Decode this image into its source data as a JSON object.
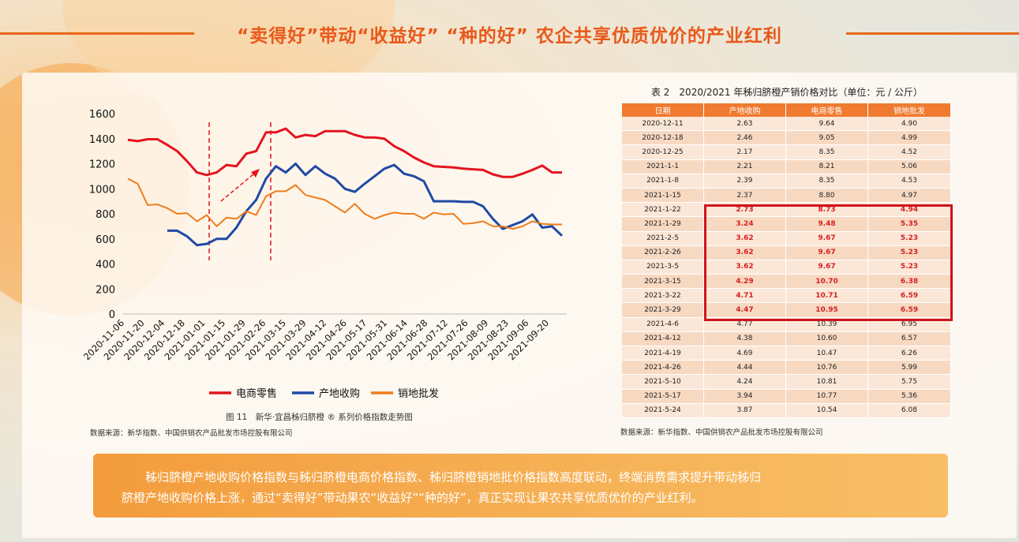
{
  "title": "“卖得好”带动“收益好” “种的好” 农企共享优质优价的产业红利",
  "colors": {
    "accent": "#e8671a",
    "ecommerce": "#e3141f",
    "origin": "#1f4aa5",
    "wholesale": "#ee7d1d",
    "highlight": "#d0121b"
  },
  "chart_data": {
    "type": "line",
    "title": "图 11　新华·宜昌秭归脐橙 ® 系列价格指数走势图",
    "source": "数据来源：新华指数、中国供销农产品批发市场控股有限公司",
    "ylim": [
      0,
      1600
    ],
    "yticks": [
      "0",
      "200",
      "400",
      "600",
      "800",
      "1000",
      "1200",
      "1400",
      "1600"
    ],
    "xticks": [
      "2020-11-06",
      "2020-11-20",
      "2020-12-04",
      "2020-12-18",
      "2021-01-01",
      "2021-01-15",
      "2021-01-29",
      "2021-02-26",
      "2021-03-15",
      "2021-03-29",
      "2021-04-12",
      "2021-04-26",
      "2021-05-17",
      "2021-05-31",
      "2021-06-14",
      "2021-06-28",
      "2021-07-12",
      "2021-07-26",
      "2021-08-09",
      "2021-08-23",
      "2021-09-06",
      "2021-09-20"
    ],
    "series": [
      {
        "name": "电商零售",
        "color": "#e3141f",
        "values": [
          1390,
          1380,
          1395,
          1395,
          1350,
          1300,
          1220,
          1130,
          1110,
          1130,
          1190,
          1180,
          1280,
          1300,
          1450,
          1450,
          1480,
          1410,
          1430,
          1420,
          1460,
          1460,
          1460,
          1430,
          1410,
          1410,
          1400,
          1340,
          1300,
          1250,
          1210,
          1180,
          1175,
          1170,
          1160,
          1155,
          1150,
          1115,
          1095,
          1095,
          1120,
          1150,
          1185,
          1130,
          1130
        ]
      },
      {
        "name": "产地收购",
        "color": "#1f4aa5",
        "values": [
          null,
          null,
          null,
          null,
          665,
          665,
          620,
          550,
          560,
          600,
          600,
          690,
          820,
          910,
          1080,
          1180,
          1130,
          1200,
          1110,
          1180,
          1120,
          1080,
          1000,
          975,
          1040,
          1100,
          1160,
          1190,
          1120,
          1100,
          1060,
          900,
          900,
          900,
          895,
          895,
          860,
          760,
          680,
          710,
          740,
          795,
          690,
          700,
          625
        ]
      },
      {
        "name": "销地批发",
        "color": "#ee7d1d",
        "values": [
          1080,
          1040,
          870,
          875,
          845,
          800,
          805,
          740,
          790,
          700,
          770,
          760,
          820,
          790,
          940,
          980,
          980,
          1030,
          950,
          930,
          910,
          860,
          810,
          880,
          800,
          760,
          790,
          810,
          800,
          800,
          760,
          810,
          795,
          800,
          720,
          725,
          740,
          700,
          700,
          680,
          700,
          740,
          720,
          715,
          715
        ]
      }
    ]
  },
  "table": {
    "title": "表 2　2020/2021 年秭归脐橙产销价格对比（单位：元 / 公斤）",
    "headers": [
      "日期",
      "产地收购",
      "电商零售",
      "销地批发"
    ],
    "rows": [
      {
        "cells": [
          "2020-12-11",
          "2.63",
          "9.64",
          "4.90"
        ],
        "highlight": false
      },
      {
        "cells": [
          "2020-12-18",
          "2.46",
          "9.05",
          "4.99"
        ],
        "highlight": false
      },
      {
        "cells": [
          "2020-12-25",
          "2.17",
          "8.35",
          "4.52"
        ],
        "highlight": false
      },
      {
        "cells": [
          "2021-1-1",
          "2.21",
          "8.21",
          "5.06"
        ],
        "highlight": false
      },
      {
        "cells": [
          "2021-1-8",
          "2.39",
          "8.35",
          "4.53"
        ],
        "highlight": false
      },
      {
        "cells": [
          "2021-1-15",
          "2.37",
          "8.80",
          "4.97"
        ],
        "highlight": false
      },
      {
        "cells": [
          "2021-1-22",
          "2.73",
          "8.73",
          "4.94"
        ],
        "highlight": true
      },
      {
        "cells": [
          "2021-1-29",
          "3.24",
          "9.48",
          "5.35"
        ],
        "highlight": true
      },
      {
        "cells": [
          "2021-2-5",
          "3.62",
          "9.67",
          "5.23"
        ],
        "highlight": true
      },
      {
        "cells": [
          "2021-2-26",
          "3.62",
          "9.67",
          "5.23"
        ],
        "highlight": true
      },
      {
        "cells": [
          "2021-3-5",
          "3.62",
          "9.67",
          "5.23"
        ],
        "highlight": true
      },
      {
        "cells": [
          "2021-3-15",
          "4.29",
          "10.70",
          "6.38"
        ],
        "highlight": true
      },
      {
        "cells": [
          "2021-3-22",
          "4.71",
          "10.71",
          "6.59"
        ],
        "highlight": true
      },
      {
        "cells": [
          "2021-3-29",
          "4.47",
          "10.95",
          "6.59"
        ],
        "highlight": true
      },
      {
        "cells": [
          "2021-4-6",
          "4.77",
          "10.39",
          "6.95"
        ],
        "highlight": false
      },
      {
        "cells": [
          "2021-4-12",
          "4.38",
          "10.60",
          "6.57"
        ],
        "highlight": false
      },
      {
        "cells": [
          "2021-4-19",
          "4.69",
          "10.47",
          "6.26"
        ],
        "highlight": false
      },
      {
        "cells": [
          "2021-4-26",
          "4.44",
          "10.76",
          "5.99"
        ],
        "highlight": false
      },
      {
        "cells": [
          "2021-5-10",
          "4.24",
          "10.81",
          "5.75"
        ],
        "highlight": false
      },
      {
        "cells": [
          "2021-5-17",
          "3.94",
          "10.77",
          "5.36"
        ],
        "highlight": false
      },
      {
        "cells": [
          "2021-5-24",
          "3.87",
          "10.54",
          "6.08"
        ],
        "highlight": false
      }
    ],
    "source": "数据来源：新华指数、中国供销农产品批发市场控股有限公司"
  },
  "summary": {
    "line1": "秭归脐橙产地收购价格指数与秭归脐橙电商价格指数、秭归脐橙销地批价格指数高度联动，终端消费需求提升带动秭归",
    "line2": "脐橙产地收购价格上涨，通过“卖得好”带动果农“收益好”“种的好”，真正实现让果农共享优质优价的产业红利。"
  }
}
